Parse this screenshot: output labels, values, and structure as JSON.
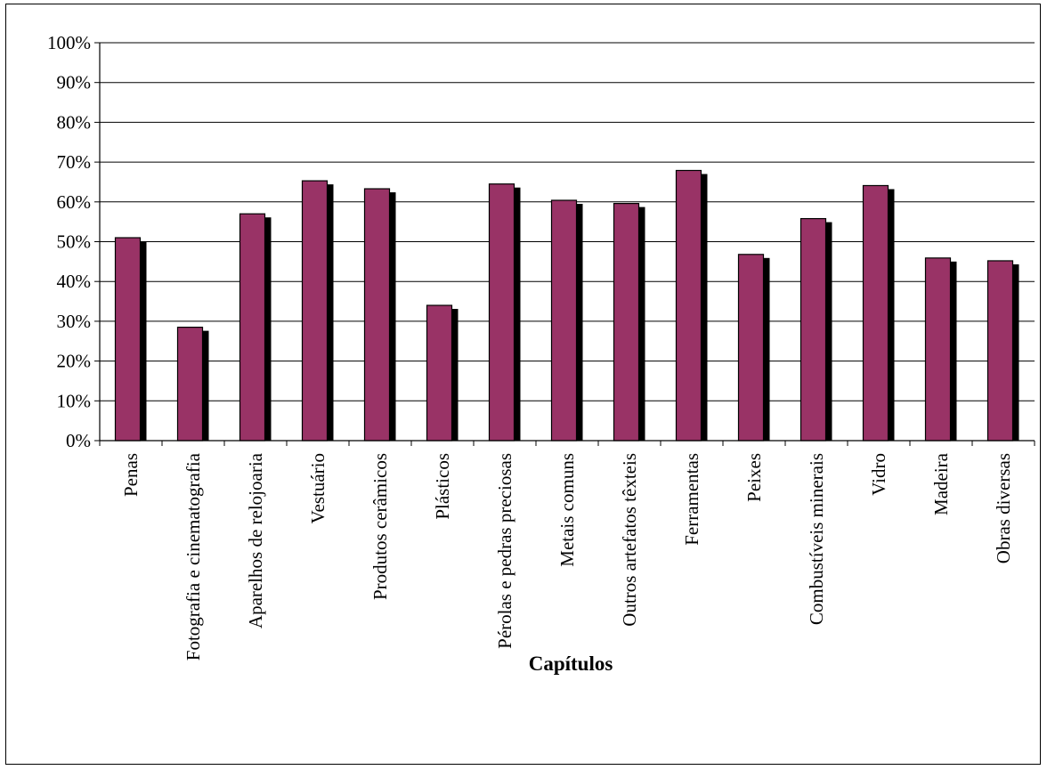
{
  "chart_data": {
    "type": "bar",
    "title": "",
    "xlabel": "Capítulos",
    "ylabel": "",
    "ylim": [
      0,
      100
    ],
    "y_ticks": [
      "0%",
      "10%",
      "20%",
      "30%",
      "40%",
      "50%",
      "60%",
      "70%",
      "80%",
      "90%",
      "100%"
    ],
    "grid": true,
    "bar_style": "3D with dark side shadow",
    "categories": [
      "Penas",
      "Fotografia e cinematografia",
      "Aparelhos de relojoaria",
      "Vestuário",
      "Produtos cerâmicos",
      "Plásticos",
      "Pérolas e pedras preciosas",
      "Metais comuns",
      "Outros artefatos têxteis",
      "Ferramentas",
      "Peixes",
      "Combustíveis minerais",
      "Vidro",
      "Madeira",
      "Obras diversas"
    ],
    "values": [
      51,
      28.5,
      57,
      65.3,
      63.3,
      34,
      64.5,
      60.4,
      59.6,
      67.9,
      46.8,
      55.8,
      64.1,
      45.9,
      45.2
    ],
    "colors": {
      "bar": "#993366",
      "shadow": "#000000",
      "grid": "#000000"
    }
  }
}
